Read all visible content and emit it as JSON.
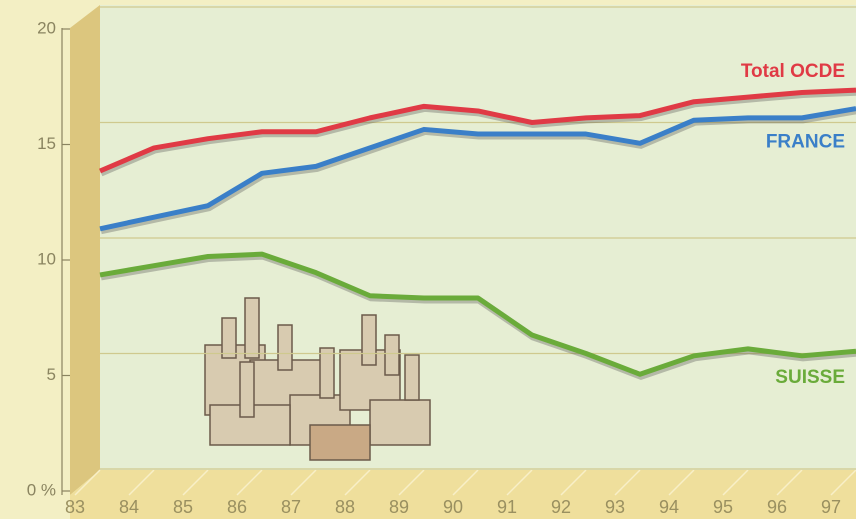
{
  "chart_data": {
    "type": "line",
    "categories": [
      "83",
      "84",
      "85",
      "86",
      "87",
      "88",
      "89",
      "90",
      "91",
      "92",
      "93",
      "94",
      "95",
      "96",
      "97"
    ],
    "series": [
      {
        "name": "Total OCDE",
        "color": "#e03a45",
        "values": [
          12.9,
          13.9,
          14.3,
          14.6,
          14.6,
          15.2,
          15.7,
          15.5,
          15.0,
          15.2,
          15.3,
          15.9,
          16.1,
          16.3,
          16.4
        ]
      },
      {
        "name": "FRANCE",
        "color": "#3a7fc8",
        "values": [
          10.4,
          10.9,
          11.4,
          12.8,
          13.1,
          13.9,
          14.7,
          14.5,
          14.5,
          14.5,
          14.1,
          15.1,
          15.2,
          15.2,
          15.6
        ]
      },
      {
        "name": "SUISSE",
        "color": "#6aab3a",
        "values": [
          8.4,
          8.8,
          9.2,
          9.3,
          8.5,
          7.5,
          7.4,
          7.4,
          5.8,
          5.0,
          4.1,
          4.9,
          5.2,
          4.9,
          5.1
        ]
      }
    ],
    "ylim": [
      0,
      20
    ],
    "yticks": [
      {
        "value": 0,
        "label": "0 %"
      },
      5,
      10,
      15,
      20
    ],
    "grid": true
  }
}
